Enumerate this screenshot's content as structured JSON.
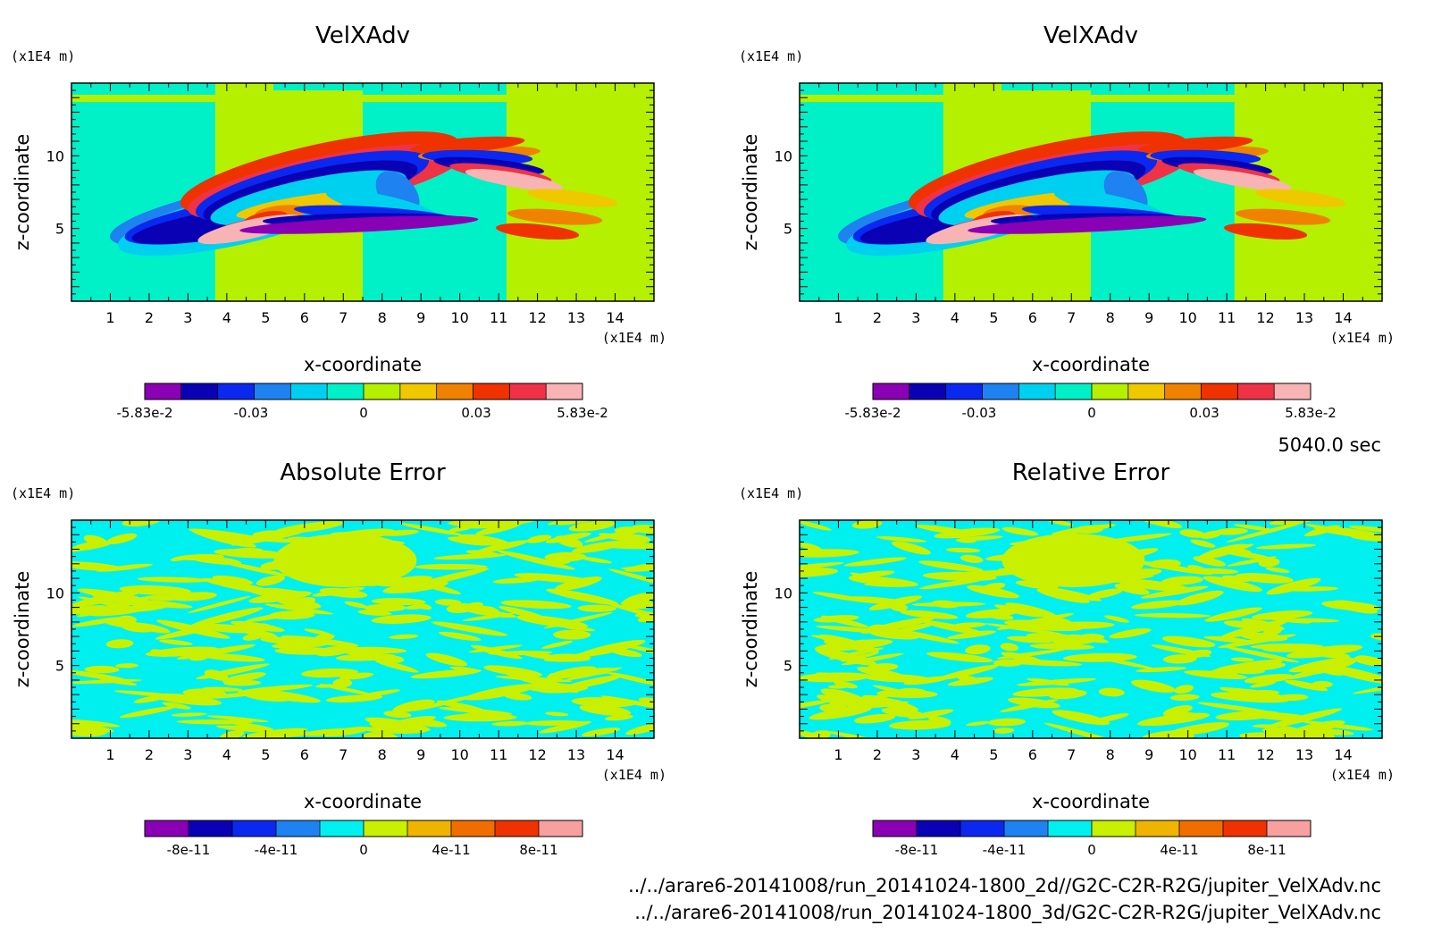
{
  "time_label": "5040.0 sec",
  "files": [
    "../../arare6-20141008/run_20141024-1800_2d//G2C-C2R-R2G/jupiter_VelXAdv.nc",
    "../../arare6-20141008/run_20141024-1800_3d/G2C-C2R-R2G/jupiter_VelXAdv.nc"
  ],
  "colors": {
    "palette": [
      "#8a00b4",
      "#0a00b4",
      "#0a28f0",
      "#1e82f0",
      "#00d0f0",
      "#00f0c8",
      "#b4f000",
      "#f0c800",
      "#f08200",
      "#f03200",
      "#f03246",
      "#f8b4b4"
    ],
    "error_palette": [
      "#8a00b4",
      "#0a00b4",
      "#0a28f0",
      "#1e82f0",
      "#00f0f0",
      "#c8f000",
      "#f0b400",
      "#f06e00",
      "#f03200",
      "#f8a0a0"
    ]
  },
  "chart_data": [
    {
      "type": "heatmap",
      "title": "VelXAdv",
      "xlabel": "x-coordinate",
      "ylabel": "z-coordinate",
      "x_unit": "(x1E4 m)",
      "z_unit": "(x1E4 m)",
      "xlim": [
        0,
        15
      ],
      "ylim": [
        0,
        15
      ],
      "x_ticks": [
        "1",
        "2",
        "3",
        "4",
        "5",
        "6",
        "7",
        "8",
        "9",
        "10",
        "11",
        "12",
        "13",
        "14"
      ],
      "y_ticks": [
        "5",
        "10"
      ],
      "colorbar": {
        "min": -0.0583,
        "max": 0.0583,
        "labels": [
          "-5.83e-2",
          "-0.03",
          "0",
          "0.03",
          "5.83e-2"
        ]
      }
    },
    {
      "type": "heatmap",
      "title": "VelXAdv",
      "xlabel": "x-coordinate",
      "ylabel": "z-coordinate",
      "x_unit": "(x1E4 m)",
      "z_unit": "(x1E4 m)",
      "xlim": [
        0,
        15
      ],
      "ylim": [
        0,
        15
      ],
      "x_ticks": [
        "1",
        "2",
        "3",
        "4",
        "5",
        "6",
        "7",
        "8",
        "9",
        "10",
        "11",
        "12",
        "13",
        "14"
      ],
      "y_ticks": [
        "5",
        "10"
      ],
      "colorbar": {
        "min": -0.0583,
        "max": 0.0583,
        "labels": [
          "-5.83e-2",
          "-0.03",
          "0",
          "0.03",
          "5.83e-2"
        ]
      }
    },
    {
      "type": "heatmap",
      "title": "Absolute Error",
      "xlabel": "x-coordinate",
      "ylabel": "z-coordinate",
      "x_unit": "(x1E4 m)",
      "z_unit": "(x1E4 m)",
      "xlim": [
        0,
        15
      ],
      "ylim": [
        0,
        15
      ],
      "x_ticks": [
        "1",
        "2",
        "3",
        "4",
        "5",
        "6",
        "7",
        "8",
        "9",
        "10",
        "11",
        "12",
        "13",
        "14"
      ],
      "y_ticks": [
        "5",
        "10"
      ],
      "colorbar": {
        "min": -1e-10,
        "max": 1e-10,
        "labels": [
          "-8e-11",
          "-4e-11",
          "0",
          "4e-11",
          "8e-11"
        ]
      }
    },
    {
      "type": "heatmap",
      "title": "Relative Error",
      "xlabel": "x-coordinate",
      "ylabel": "z-coordinate",
      "x_unit": "(x1E4 m)",
      "z_unit": "(x1E4 m)",
      "xlim": [
        0,
        15
      ],
      "ylim": [
        0,
        15
      ],
      "x_ticks": [
        "1",
        "2",
        "3",
        "4",
        "5",
        "6",
        "7",
        "8",
        "9",
        "10",
        "11",
        "12",
        "13",
        "14"
      ],
      "y_ticks": [
        "5",
        "10"
      ],
      "colorbar": {
        "min": -1e-10,
        "max": 1e-10,
        "labels": [
          "-8e-11",
          "-4e-11",
          "0",
          "4e-11",
          "8e-11"
        ]
      }
    }
  ]
}
